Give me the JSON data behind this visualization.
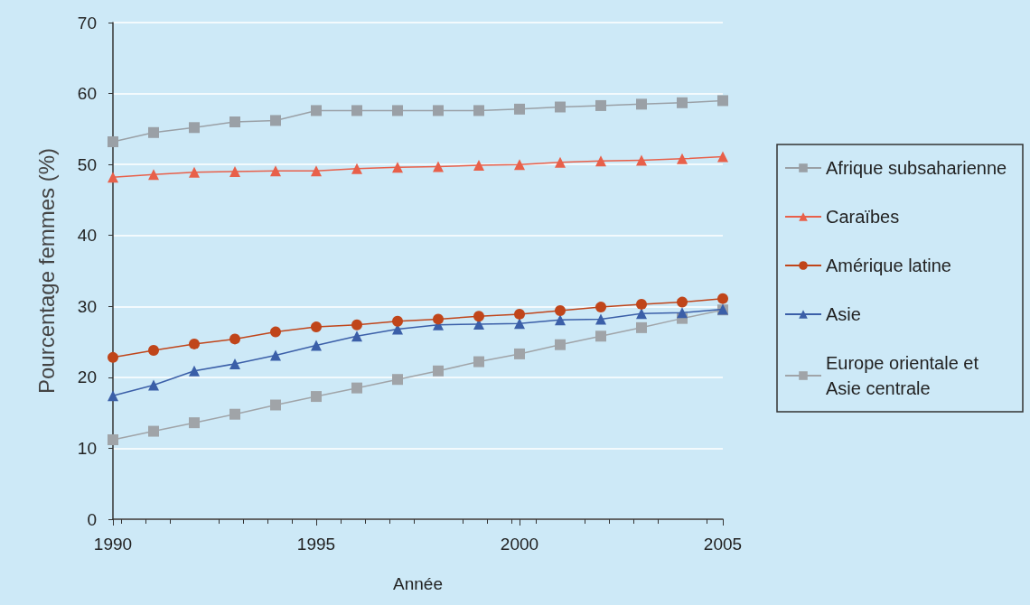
{
  "chart_data": {
    "type": "line",
    "xlabel": "Année",
    "ylabel": "Pourcentage femmes (%)",
    "x": [
      1990,
      1991,
      1992,
      1993,
      1994,
      1995,
      1996,
      1997,
      1998,
      1999,
      2000,
      2001,
      2002,
      2003,
      2004,
      2005
    ],
    "xlim": [
      1990,
      2005
    ],
    "xticks": [
      1990,
      1995,
      2000,
      2005
    ],
    "ylim": [
      0,
      70
    ],
    "yticks": [
      0,
      10,
      20,
      30,
      40,
      50,
      60,
      70
    ],
    "grid": "y",
    "legend": "right",
    "series": [
      {
        "name": "Afrique subsaharienne",
        "color": "#9aa0a6",
        "marker": "square",
        "values": [
          53.2,
          54.5,
          55.2,
          56,
          56.2,
          57.6,
          57.6,
          57.6,
          57.6,
          57.6,
          57.8,
          58.1,
          58.3,
          58.5,
          58.7,
          59
        ]
      },
      {
        "name": "Caraïbes",
        "color": "#e8604a",
        "marker": "triangle",
        "values": [
          48.2,
          48.6,
          48.9,
          49,
          49.1,
          49.1,
          49.4,
          49.6,
          49.7,
          49.9,
          50,
          50.3,
          50.5,
          50.6,
          50.8,
          51.1
        ]
      },
      {
        "name": "Amérique latine",
        "color": "#c0451a",
        "marker": "circle",
        "values": [
          22.8,
          23.8,
          24.7,
          25.4,
          26.4,
          27.1,
          27.4,
          27.9,
          28.2,
          28.6,
          28.9,
          29.4,
          29.9,
          30.3,
          30.6,
          31.1
        ]
      },
      {
        "name": "Asie",
        "color": "#3b5fa8",
        "marker": "triangle",
        "values": [
          17.4,
          18.9,
          20.9,
          21.9,
          23.1,
          24.5,
          25.8,
          26.8,
          27.4,
          27.5,
          27.6,
          28.1,
          28.2,
          29,
          29.1,
          29.6
        ]
      },
      {
        "name": "Europe orientale et Asie centrale",
        "color": "#a0a4a8",
        "marker": "square",
        "values": [
          11.2,
          12.4,
          13.6,
          14.8,
          16.1,
          17.3,
          18.5,
          19.7,
          20.9,
          22.2,
          23.3,
          24.6,
          25.8,
          27,
          28.3,
          29.5
        ]
      }
    ]
  }
}
